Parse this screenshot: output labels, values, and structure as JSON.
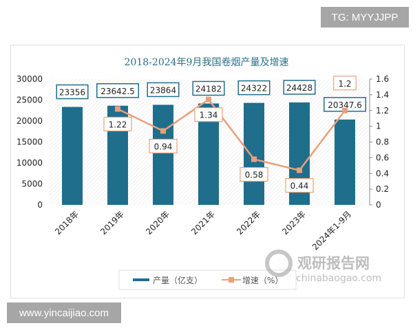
{
  "watermarks": {
    "top": "TG: MYYJJPP",
    "bottom": "www.yincaijiao.com",
    "logo_cn": "观研报告网",
    "logo_en": "chinabaogao.com"
  },
  "colors": {
    "bar": "#1f6e8c",
    "line": "#e8a07a",
    "title": "#2a6f86"
  },
  "chart_data": {
    "type": "bar+line",
    "title": "2018-2024年9月我国卷烟产量及增速",
    "categories": [
      "2018年",
      "2019年",
      "2020年",
      "2021年",
      "2022年",
      "2023年",
      "2024年1-9月"
    ],
    "series": [
      {
        "name": "产量（亿支）",
        "type": "bar",
        "axis": "left",
        "values": [
          23356,
          23642.5,
          23864,
          24182,
          24322,
          24428,
          20347.6
        ],
        "labels": [
          "23356",
          "23642.5",
          "23864",
          "24182",
          "24322",
          "24428",
          "20347.6"
        ]
      },
      {
        "name": "增速（%）",
        "type": "line",
        "axis": "right",
        "values": [
          null,
          1.22,
          0.94,
          1.34,
          0.58,
          0.44,
          1.2
        ],
        "labels": [
          "",
          "1.22",
          "0.94",
          "1.34",
          "0.58",
          "0.44",
          "1.2"
        ]
      }
    ],
    "left_axis": {
      "ylim": [
        0,
        30000
      ],
      "ticks": [
        "0",
        "5000",
        "10000",
        "15000",
        "20000",
        "25000",
        "30000"
      ]
    },
    "right_axis": {
      "ylim": [
        0,
        1.6
      ],
      "ticks": [
        "0",
        "0.2",
        "0.4",
        "0.6",
        "0.8",
        "1",
        "1.2",
        "1.4",
        "1.6"
      ]
    },
    "legend": "bottom",
    "grid": false
  }
}
